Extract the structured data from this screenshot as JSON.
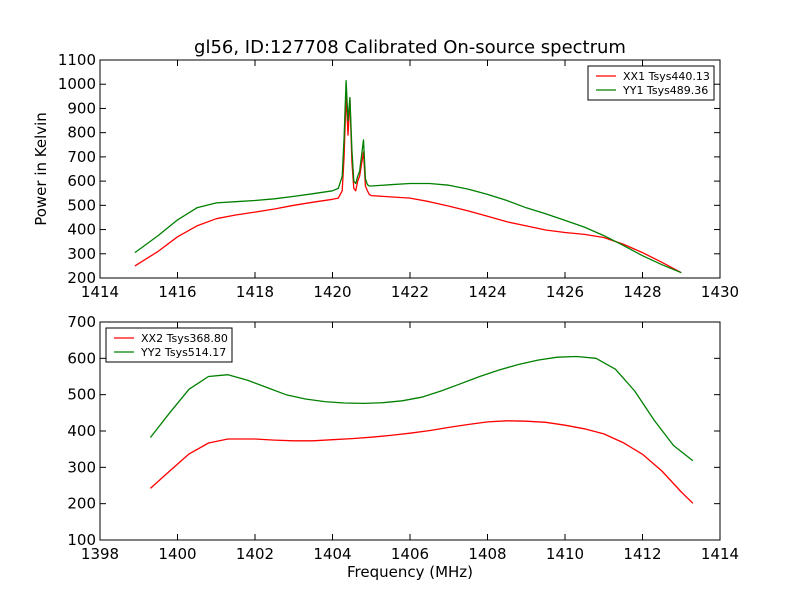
{
  "colors": {
    "red": "#ff0000",
    "green": "#008000"
  },
  "title": "gl56, ID:127708 Calibrated On-source spectrum",
  "chart_data": [
    {
      "type": "line",
      "title": "gl56, ID:127708 Calibrated On-source spectrum",
      "xlabel": "",
      "ylabel": "Power in Kelvin",
      "xlim": [
        1414,
        1430
      ],
      "ylim": [
        200,
        1100
      ],
      "xticks": [
        "1414",
        "1416",
        "1418",
        "1420",
        "1422",
        "1424",
        "1426",
        "1428",
        "1430"
      ],
      "yticks": [
        "200",
        "300",
        "400",
        "500",
        "600",
        "700",
        "800",
        "900",
        "1000",
        "1100"
      ],
      "grid": false,
      "legend_position": "top-right",
      "series": [
        {
          "name": "XX1 Tsys440.13",
          "color": "#ff0000",
          "x": [
            1414.9,
            1415.5,
            1416.0,
            1416.5,
            1417.0,
            1417.5,
            1418.0,
            1418.5,
            1419.0,
            1419.5,
            1420.0,
            1420.15,
            1420.25,
            1420.3,
            1420.35,
            1420.4,
            1420.45,
            1420.5,
            1420.55,
            1420.6,
            1420.65,
            1420.7,
            1420.8,
            1420.85,
            1420.9,
            1420.95,
            1421.0,
            1421.5,
            1422.0,
            1422.5,
            1423.0,
            1423.5,
            1424.0,
            1424.5,
            1425.0,
            1425.5,
            1426.0,
            1426.5,
            1427.0,
            1427.5,
            1428.0,
            1428.5,
            1429.0
          ],
          "y": [
            250,
            310,
            370,
            415,
            445,
            460,
            472,
            485,
            500,
            513,
            525,
            530,
            560,
            700,
            960,
            790,
            940,
            680,
            570,
            560,
            600,
            620,
            720,
            580,
            560,
            545,
            540,
            535,
            530,
            515,
            497,
            477,
            455,
            432,
            415,
            398,
            388,
            380,
            367,
            340,
            305,
            265,
            222
          ]
        },
        {
          "name": "YY1 Tsys489.36",
          "color": "#008000",
          "x": [
            1414.9,
            1415.5,
            1416.0,
            1416.5,
            1417.0,
            1417.5,
            1418.0,
            1418.5,
            1419.0,
            1419.5,
            1420.0,
            1420.15,
            1420.25,
            1420.3,
            1420.35,
            1420.4,
            1420.45,
            1420.5,
            1420.55,
            1420.6,
            1420.65,
            1420.7,
            1420.8,
            1420.85,
            1420.9,
            1420.95,
            1421.0,
            1421.5,
            1422.0,
            1422.5,
            1423.0,
            1423.5,
            1424.0,
            1424.5,
            1425.0,
            1425.5,
            1426.0,
            1426.5,
            1427.0,
            1427.5,
            1428.0,
            1428.5,
            1429.0
          ],
          "y": [
            305,
            375,
            440,
            490,
            510,
            515,
            520,
            527,
            537,
            548,
            560,
            570,
            620,
            780,
            1015,
            850,
            945,
            730,
            600,
            590,
            620,
            640,
            770,
            610,
            585,
            580,
            580,
            585,
            590,
            590,
            583,
            567,
            545,
            520,
            490,
            465,
            438,
            410,
            375,
            335,
            292,
            255,
            222
          ]
        }
      ]
    },
    {
      "type": "line",
      "title": "",
      "xlabel": "Frequency (MHz)",
      "ylabel": "",
      "xlim": [
        1398,
        1414
      ],
      "ylim": [
        100,
        700
      ],
      "xticks": [
        "1398",
        "1400",
        "1402",
        "1404",
        "1406",
        "1408",
        "1410",
        "1412",
        "1414"
      ],
      "yticks": [
        "100",
        "200",
        "300",
        "400",
        "500",
        "600",
        "700"
      ],
      "grid": false,
      "legend_position": "top-left",
      "series": [
        {
          "name": "XX2 Tsys368.80",
          "color": "#ff0000",
          "x": [
            1399.3,
            1399.8,
            1400.3,
            1400.8,
            1401.3,
            1402.0,
            1402.5,
            1403.0,
            1403.5,
            1404.0,
            1404.5,
            1405.0,
            1405.5,
            1406.0,
            1406.5,
            1407.0,
            1407.5,
            1408.0,
            1408.5,
            1409.0,
            1409.5,
            1410.0,
            1410.5,
            1411.0,
            1411.5,
            1412.0,
            1412.5,
            1413.0,
            1413.3
          ],
          "y": [
            242,
            290,
            337,
            367,
            378,
            378,
            375,
            373,
            373,
            376,
            379,
            383,
            388,
            394,
            401,
            410,
            418,
            425,
            428,
            427,
            424,
            416,
            406,
            392,
            368,
            336,
            290,
            232,
            201
          ]
        },
        {
          "name": "YY2 Tsys514.17",
          "color": "#008000",
          "x": [
            1399.3,
            1399.8,
            1400.3,
            1400.8,
            1401.3,
            1401.8,
            1402.3,
            1402.8,
            1403.3,
            1403.8,
            1404.3,
            1404.8,
            1405.3,
            1405.8,
            1406.3,
            1406.8,
            1407.3,
            1407.8,
            1408.3,
            1408.8,
            1409.3,
            1409.8,
            1410.3,
            1410.8,
            1411.3,
            1411.8,
            1412.3,
            1412.8,
            1413.3
          ],
          "y": [
            382,
            450,
            515,
            550,
            555,
            540,
            520,
            500,
            488,
            481,
            477,
            476,
            478,
            483,
            493,
            510,
            530,
            550,
            568,
            583,
            595,
            603,
            605,
            600,
            570,
            510,
            430,
            360,
            318
          ]
        }
      ]
    }
  ]
}
